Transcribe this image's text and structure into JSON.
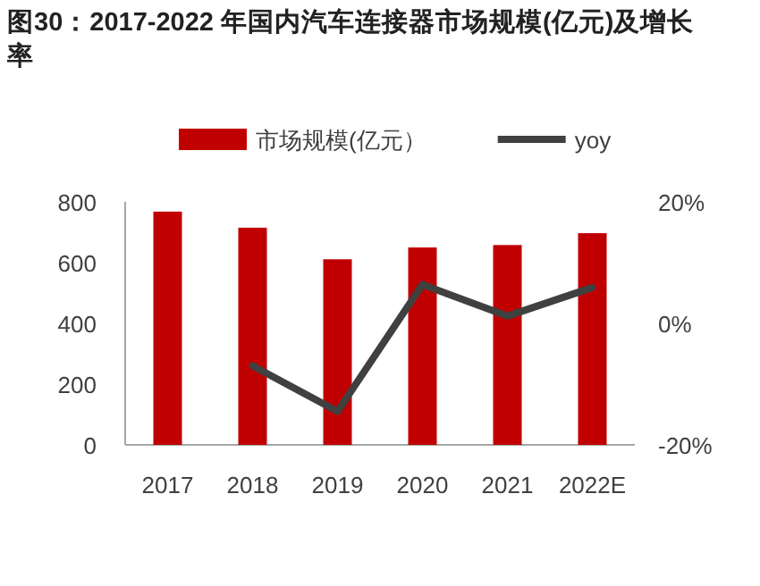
{
  "chart_data": {
    "type": "bar",
    "title": "图30：2017-2022 年国内汽车连接器市场规模(亿元)及增长率",
    "categories": [
      "2017",
      "2018",
      "2019",
      "2020",
      "2021",
      "2022E"
    ],
    "series": [
      {
        "name": "市场规模(亿元）",
        "color": "#c00000",
        "values": [
          768,
          715,
          611,
          650,
          658,
          697
        ]
      },
      {
        "name": "yoy",
        "color": "#404040",
        "type": "line",
        "axis": "y2",
        "values": [
          null,
          -7.0,
          -14.5,
          6.4,
          1.2,
          5.9
        ]
      }
    ],
    "ylim": [
      0,
      800
    ],
    "yticks": [
      0,
      200,
      400,
      600,
      800
    ],
    "y2lim": [
      -20,
      20
    ],
    "y2ticks": [
      {
        "value": -20,
        "label": "-20%"
      },
      {
        "value": 0,
        "label": "0%"
      },
      {
        "value": 20,
        "label": "20%"
      }
    ],
    "legend": "top"
  }
}
